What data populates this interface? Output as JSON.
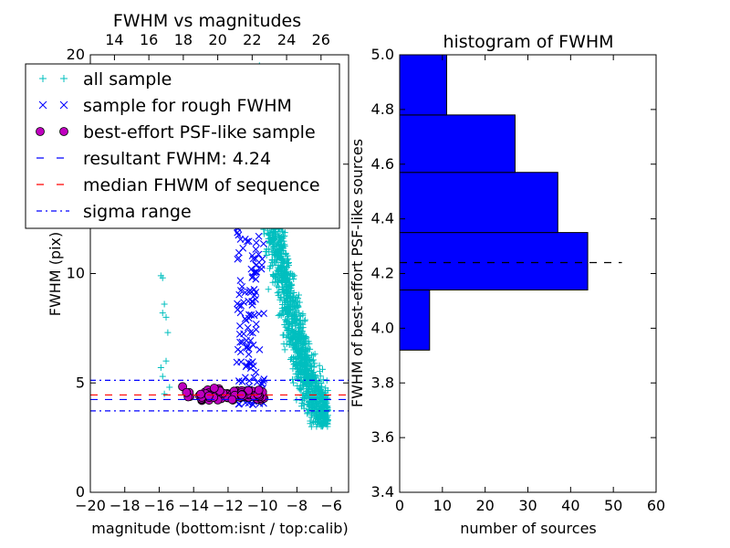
{
  "chart_data": [
    {
      "type": "scatter",
      "title": "FWHM vs magnitudes",
      "xlabel": "magnitude (bottom:isnt / top:calib)",
      "ylabel": "FWHM (pix)",
      "xlim": [
        -20,
        -5
      ],
      "ylim": [
        0,
        20
      ],
      "xticks": [
        "−20",
        "−18",
        "−16",
        "−14",
        "−12",
        "−10",
        "−8",
        "−6"
      ],
      "xtick_values": [
        -20,
        -18,
        -16,
        -14,
        -12,
        -10,
        -8,
        -6
      ],
      "yticks": [
        "0",
        "5",
        "10",
        "15",
        "20"
      ],
      "ytick_values": [
        0,
        5,
        10,
        15,
        20
      ],
      "top_xticks": [
        "14",
        "16",
        "18",
        "20",
        "22",
        "24",
        "26"
      ],
      "top_xtick_values": [
        -18.6,
        -16.6,
        -14.6,
        -12.6,
        -10.6,
        -8.6,
        -6.6
      ],
      "legend_position": "upper-left",
      "series": [
        {
          "name": "all sample",
          "marker": "plus",
          "color": "#00bfbf",
          "cloud": {
            "x_range": [
              -10.2,
              -6.2
            ],
            "y_range": [
              3.0,
              20.0
            ],
            "count": 1400
          },
          "x": [
            -15.9,
            -15.8,
            -15.7,
            -15.6,
            -15.5,
            -15.9,
            -15.8,
            -15.6,
            -15.4,
            -15.8,
            -15.7
          ],
          "y": [
            9.9,
            9.8,
            8.6,
            8.0,
            7.3,
            5.7,
            5.3,
            6.0,
            4.8,
            8.2,
            4.5
          ]
        },
        {
          "name": "sample for rough FWHM",
          "marker": "x",
          "color": "#0000ff",
          "cloud": {
            "x_range": [
              -11.5,
              -9.9
            ],
            "y_range": [
              4.0,
              12.5
            ],
            "count": 130
          }
        },
        {
          "name": "best-effort PSF-like sample",
          "marker": "circle",
          "color": "#bf00bf",
          "cloud": {
            "x_range": [
              -14.7,
              -9.9
            ],
            "y_range": [
              4.0,
              5.0
            ],
            "count": 110
          }
        },
        {
          "name": "resultant FWHM: 4.24",
          "type": "hline",
          "y": 4.24,
          "color": "#0000ff",
          "dash": "dashed"
        },
        {
          "name": "median FHWM of sequence",
          "type": "hline",
          "y": 4.45,
          "color": "#ff0000",
          "dash": "dashed"
        },
        {
          "name": "sigma range",
          "type": "hline",
          "y": [
            3.72,
            5.12
          ],
          "color": "#0000ff",
          "dash": "dashdot"
        }
      ]
    },
    {
      "type": "bar",
      "orientation": "horizontal",
      "title": "histogram of FWHM",
      "xlabel": "number of sources",
      "ylabel": "FWHM of best-effort PSF-like sources",
      "xlim": [
        0,
        60
      ],
      "ylim": [
        3.4,
        5.0
      ],
      "xticks": [
        "0",
        "10",
        "20",
        "30",
        "40",
        "50",
        "60"
      ],
      "xtick_values": [
        0,
        10,
        20,
        30,
        40,
        50,
        60
      ],
      "yticks": [
        "3.4",
        "3.6",
        "3.8",
        "4.0",
        "4.2",
        "4.4",
        "4.6",
        "4.8",
        "5.0"
      ],
      "ytick_values": [
        3.4,
        3.6,
        3.8,
        4.0,
        4.2,
        4.4,
        4.6,
        4.8,
        5.0
      ],
      "bar_color": "#0000ff",
      "bins": [
        {
          "y0": 3.92,
          "y1": 4.14,
          "count": 7
        },
        {
          "y0": 4.14,
          "y1": 4.35,
          "count": 44
        },
        {
          "y0": 4.35,
          "y1": 4.57,
          "count": 37
        },
        {
          "y0": 4.57,
          "y1": 4.78,
          "count": 27
        },
        {
          "y0": 4.78,
          "y1": 5.0,
          "count": 11
        }
      ],
      "reference_line": {
        "y": 4.24,
        "x_range": [
          0,
          52
        ],
        "color": "#000000",
        "dash": "dashed"
      }
    }
  ]
}
